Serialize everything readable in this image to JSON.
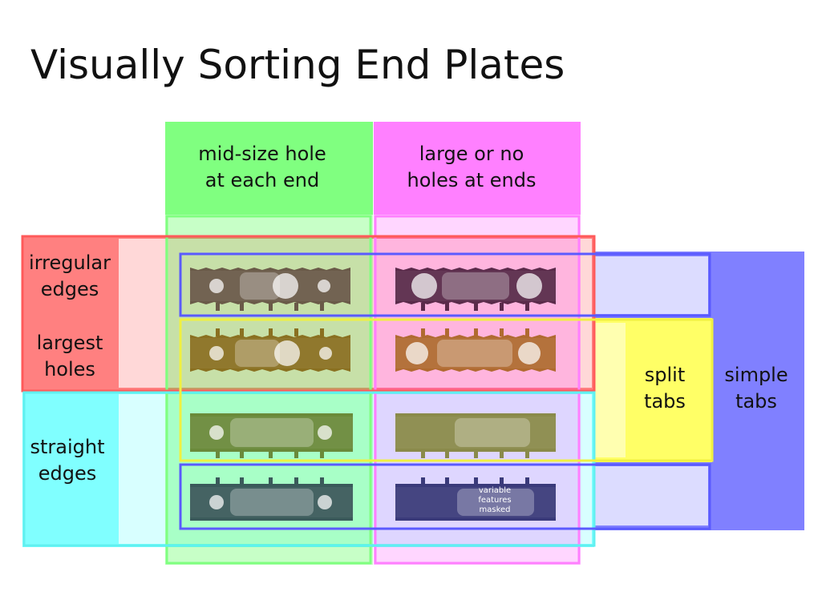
{
  "title": "Visually Sorting End Plates",
  "columns": {
    "mid": {
      "line1": "mid-size hole",
      "line2": "at each end",
      "color": "#80ff80"
    },
    "large": {
      "line1": "large or no",
      "line2": "holes at ends",
      "color": "#ff80ff"
    }
  },
  "rows": {
    "irregular": {
      "line1": "irregular",
      "line2": "edges",
      "color": "#ff8080"
    },
    "largest": {
      "line1": "largest",
      "line2": "holes"
    },
    "straight": {
      "line1": "straight",
      "line2": "edges",
      "color": "#80ffff"
    }
  },
  "tab_groups": {
    "split": {
      "line1": "split",
      "line2": "tabs",
      "color": "#ffff55"
    },
    "simple": {
      "line1": "simple",
      "line2": "tabs",
      "color": "#8080ff"
    }
  },
  "plates": [
    {
      "id": "plate-1",
      "base": "#6a5a48"
    },
    {
      "id": "plate-2",
      "base": "#5a2a4a"
    },
    {
      "id": "plate-3",
      "base": "#8a7020"
    },
    {
      "id": "plate-4",
      "base": "#b06a30"
    },
    {
      "id": "plate-5",
      "base": "#6a8a3a"
    },
    {
      "id": "plate-6",
      "base": "#8a8a4a"
    },
    {
      "id": "plate-7",
      "base": "#3a5a5a"
    },
    {
      "id": "plate-8",
      "base": "#3a3a7a"
    }
  ],
  "mask_note": {
    "line1": "variable",
    "line2": "features",
    "line3": "masked"
  }
}
